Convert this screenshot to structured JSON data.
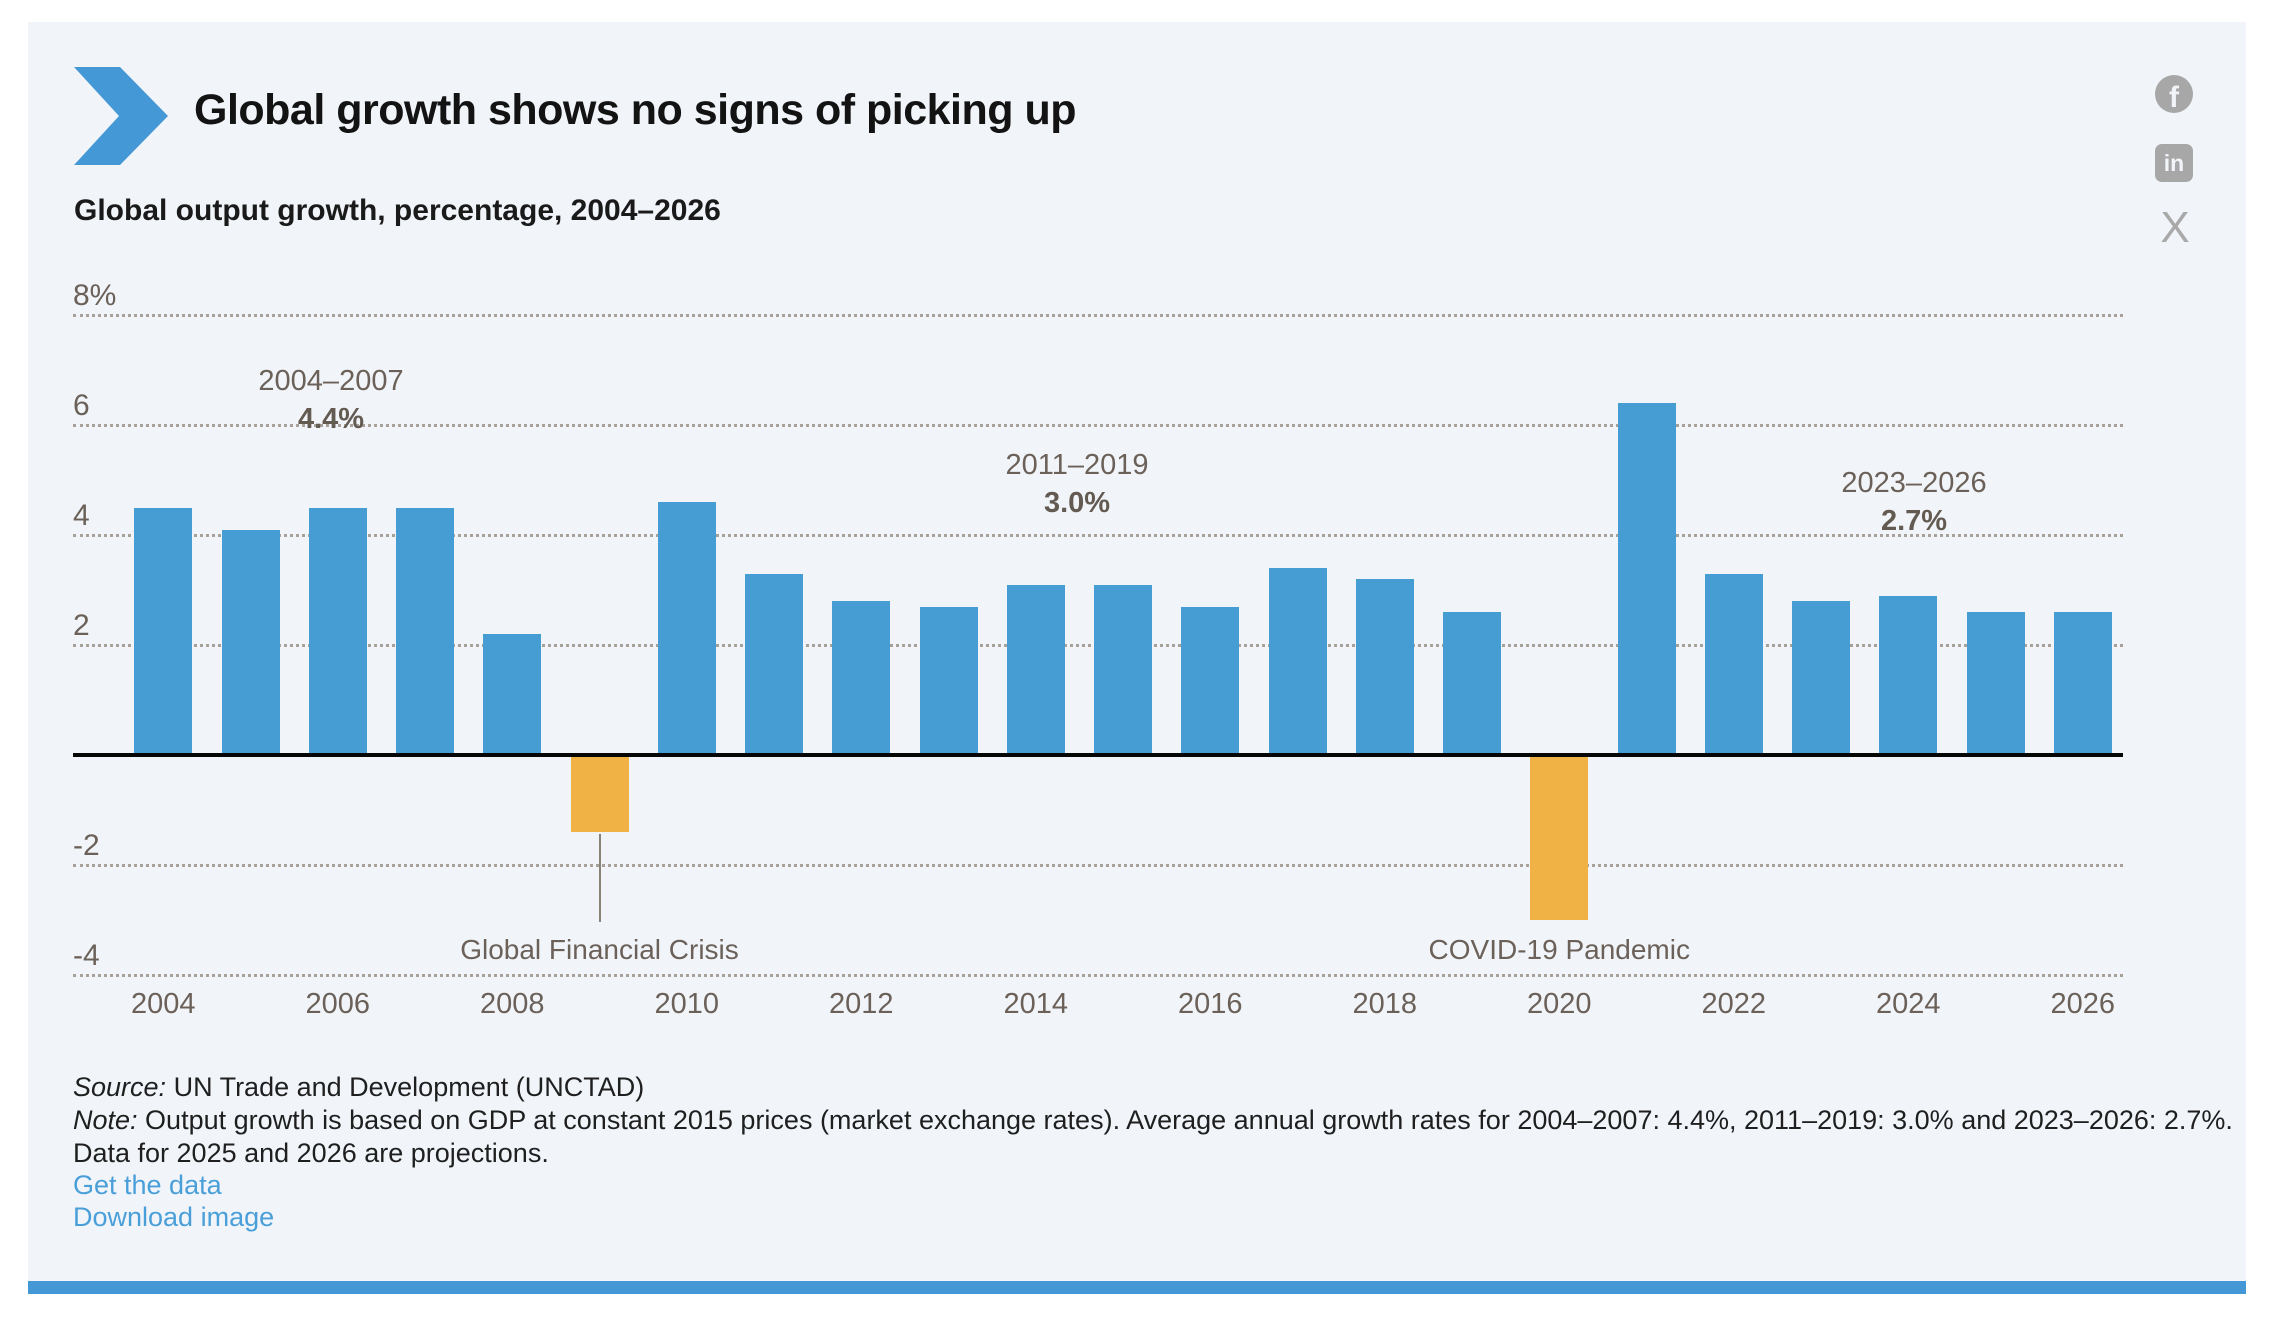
{
  "header": {
    "title": "Global growth shows no signs of picking up",
    "subtitle": "Global output growth, percentage, 2004–2026"
  },
  "social": {
    "facebook_glyph": "f",
    "linkedin_glyph": "in",
    "x_glyph": "X"
  },
  "chart_data": {
    "type": "bar",
    "title": "Global output growth, percentage, 2004–2026",
    "xlabel": "",
    "ylabel": "percentage",
    "ylim": [
      -4,
      8
    ],
    "grid": "dotted horizontal",
    "gridline_values": [
      8,
      6,
      4,
      2,
      -2,
      -4
    ],
    "y_tick_labels": [
      "8%",
      "6",
      "4",
      "2",
      "-2",
      "-4"
    ],
    "x_tick_years": [
      2004,
      2006,
      2008,
      2010,
      2012,
      2014,
      2016,
      2018,
      2020,
      2022,
      2024,
      2026
    ],
    "years": [
      2004,
      2005,
      2006,
      2007,
      2008,
      2009,
      2010,
      2011,
      2012,
      2013,
      2014,
      2015,
      2016,
      2017,
      2018,
      2019,
      2020,
      2021,
      2022,
      2023,
      2024,
      2025,
      2026
    ],
    "values": [
      4.5,
      4.1,
      4.5,
      4.5,
      2.2,
      -1.4,
      4.6,
      3.3,
      2.8,
      2.7,
      3.1,
      3.1,
      2.7,
      3.4,
      3.2,
      2.6,
      -3.0,
      6.4,
      3.3,
      2.8,
      2.9,
      2.6,
      2.6
    ],
    "highlight_years": [
      2009,
      2020
    ],
    "bar_color": "#469dd4",
    "highlight_color": "#f0b245",
    "accent_color": "#4498d6",
    "annotations": [
      {
        "label": "2004–2007",
        "value": "4.4%"
      },
      {
        "label": "2011–2019",
        "value": "3.0%"
      },
      {
        "label": "2023–2026",
        "value": "2.7%"
      }
    ],
    "event_labels": [
      {
        "text": "Global Financial Crisis",
        "year": 2009
      },
      {
        "text": "COVID-19 Pandemic",
        "year": 2020
      }
    ]
  },
  "footer": {
    "source_prefix": "Source:",
    "source_text": " UN Trade and Development (UNCTAD)",
    "note_prefix": "Note:",
    "note_text": " Output growth is based on GDP at constant 2015 prices (market exchange rates). Average annual growth rates for 2004–2007: 4.4%, 2011–2019: 3.0% and 2023–2026: 2.7%.",
    "note_text2": "Data for 2025 and 2026 are projections.",
    "links": [
      {
        "label": "Get the data"
      },
      {
        "label": "Download image"
      }
    ]
  }
}
